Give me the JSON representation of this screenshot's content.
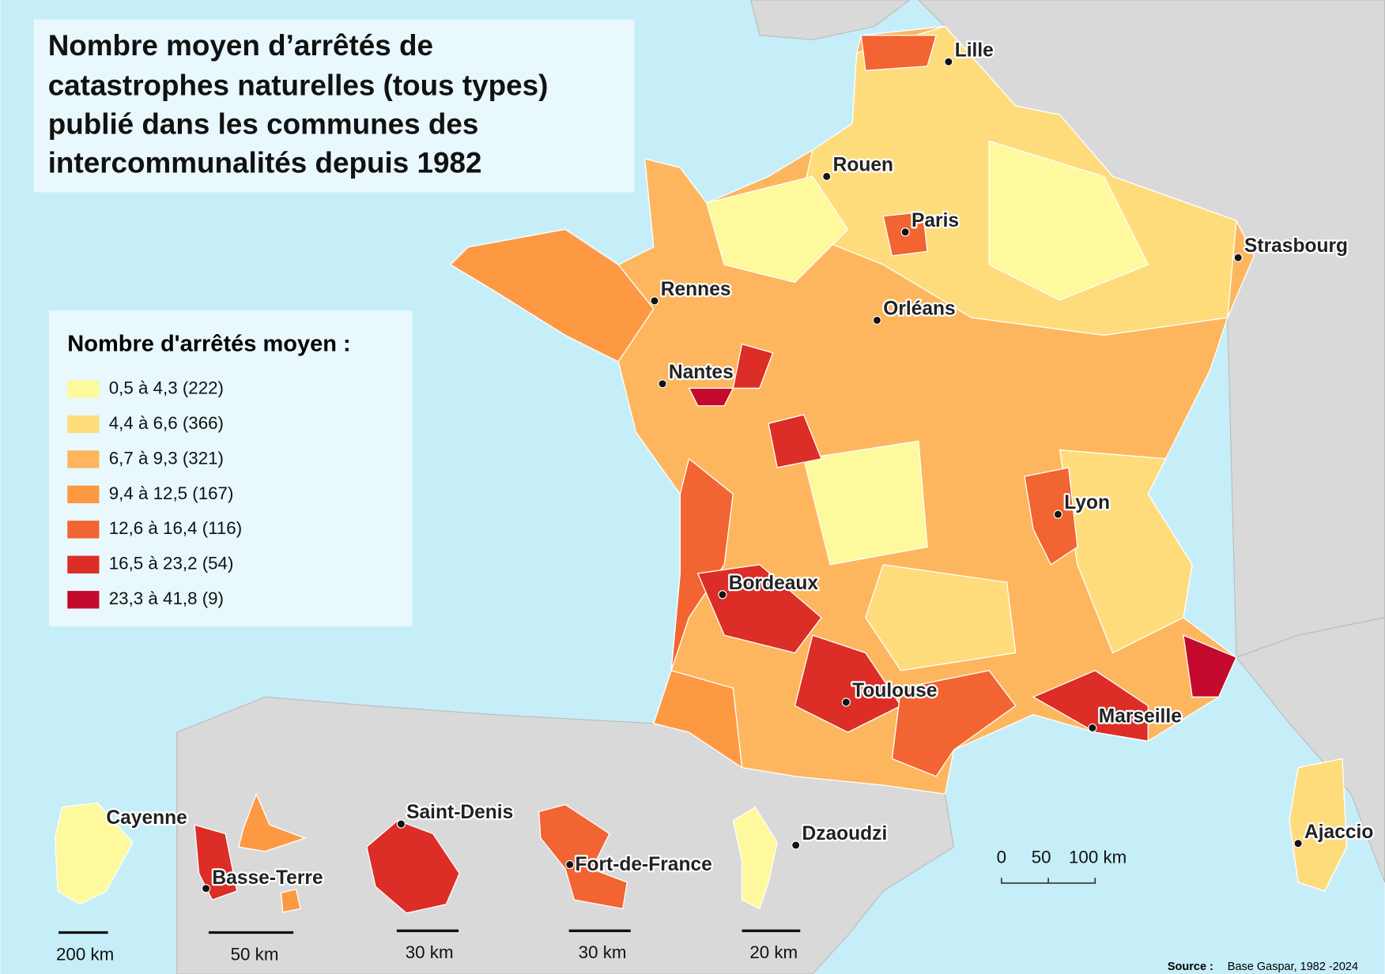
{
  "title": {
    "lines": [
      "Nombre moyen d’arrêtés de",
      "catastrophes naturelles (tous types)",
      "publié dans les communes des",
      "intercommunalités depuis 1982"
    ]
  },
  "legend": {
    "title": "Nombre d'arrêtés moyen :",
    "items": [
      {
        "label": "0,5 à 4,3 (222)",
        "color": "#fdf99c"
      },
      {
        "label": "4,4 à 6,6 (366)",
        "color": "#fedc7c"
      },
      {
        "label": "6,7 à 9,3 (321)",
        "color": "#fdb65e"
      },
      {
        "label": "9,4 à 12,5 (167)",
        "color": "#fd9843"
      },
      {
        "label": "12,6 à 16,4 (116)",
        "color": "#f26431"
      },
      {
        "label": "16,5 à 23,2 (54)",
        "color": "#dc2d26"
      },
      {
        "label": "23,3 à 41,8 (9)",
        "color": "#c40a2c"
      }
    ]
  },
  "cities": [
    "Lille",
    "Rouen",
    "Paris",
    "Strasbourg",
    "Rennes",
    "Orléans",
    "Nantes",
    "Lyon",
    "Bordeaux",
    "Toulouse",
    "Marseille",
    "Ajaccio"
  ],
  "insets": [
    {
      "city": "Cayenne",
      "scale": "200 km"
    },
    {
      "city": "Basse-Terre",
      "scale": "50 km"
    },
    {
      "city": "Saint-Denis",
      "scale": "30 km"
    },
    {
      "city": "Fort-de-France",
      "scale": "30 km"
    },
    {
      "city": "Dzaoudzi",
      "scale": "20 km"
    }
  ],
  "scale_bar": [
    "0",
    "50",
    "100 km"
  ],
  "source": {
    "label": "Source :",
    "text": "Base Gaspar, 1982 -2024"
  }
}
